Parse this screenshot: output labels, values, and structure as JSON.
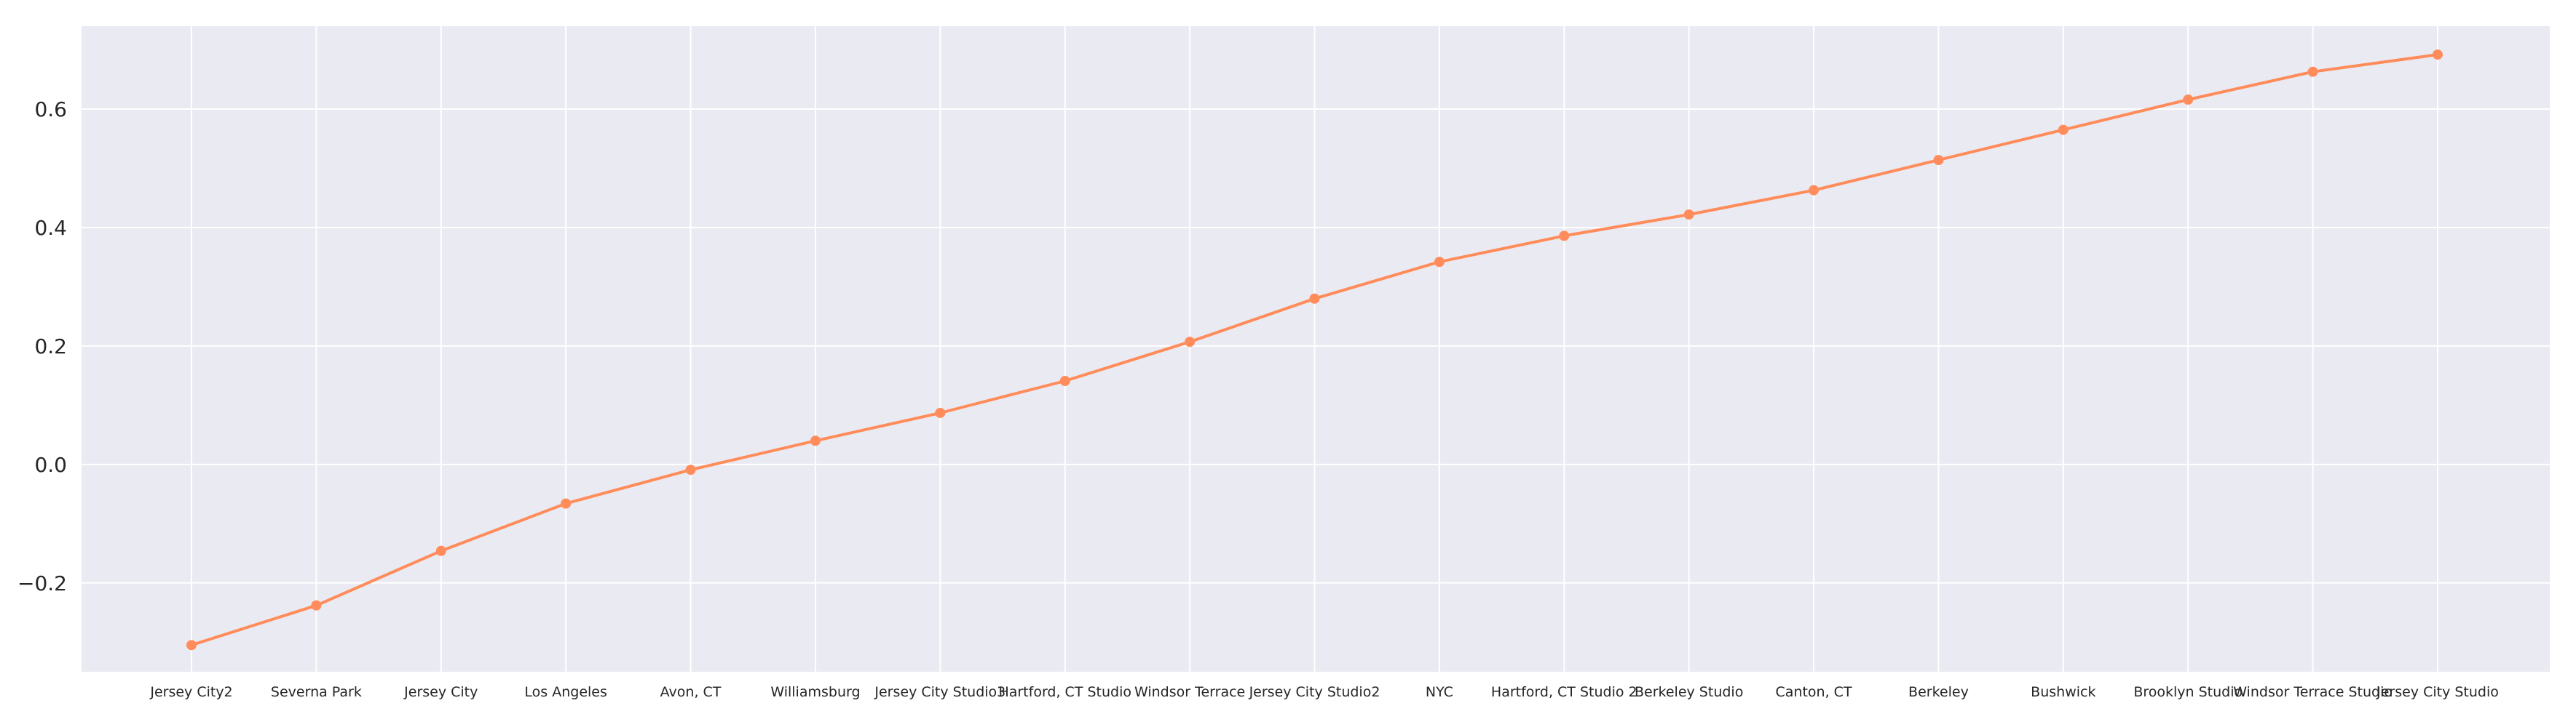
{
  "chart_data": {
    "type": "line",
    "title": "",
    "xlabel": "",
    "ylabel": "",
    "ylim": [
      -0.35,
      0.74
    ],
    "yticks": [
      -0.2,
      0.0,
      0.2,
      0.4,
      0.6
    ],
    "ytick_labels": [
      "−0.2",
      "0.0",
      "0.2",
      "0.4",
      "0.6"
    ],
    "grid": true,
    "background": "#eaeaf2",
    "grid_color": "#ffffff",
    "line_color": "#ff8c5a",
    "categories": [
      "Jersey City2",
      "Severna Park",
      "Jersey City",
      "Los Angeles",
      "Avon, CT",
      "Williamsburg",
      "Jersey City Studio3",
      "Hartford, CT Studio",
      "Windsor Terrace",
      "Jersey City Studio2",
      "NYC",
      "Hartford, CT Studio 2",
      "Berkeley Studio",
      "Canton, CT",
      "Berkeley",
      "Bushwick",
      "Brooklyn Studio",
      "Windsor Terrace Studio",
      "Jersey City Studio"
    ],
    "series": [
      {
        "values": [
          -0.305,
          -0.238,
          -0.146,
          -0.066,
          -0.009,
          0.04,
          0.087,
          0.141,
          0.207,
          0.28,
          0.342,
          0.386,
          0.422,
          0.463,
          0.514,
          0.565,
          0.616,
          0.663,
          0.692
        ]
      }
    ]
  }
}
